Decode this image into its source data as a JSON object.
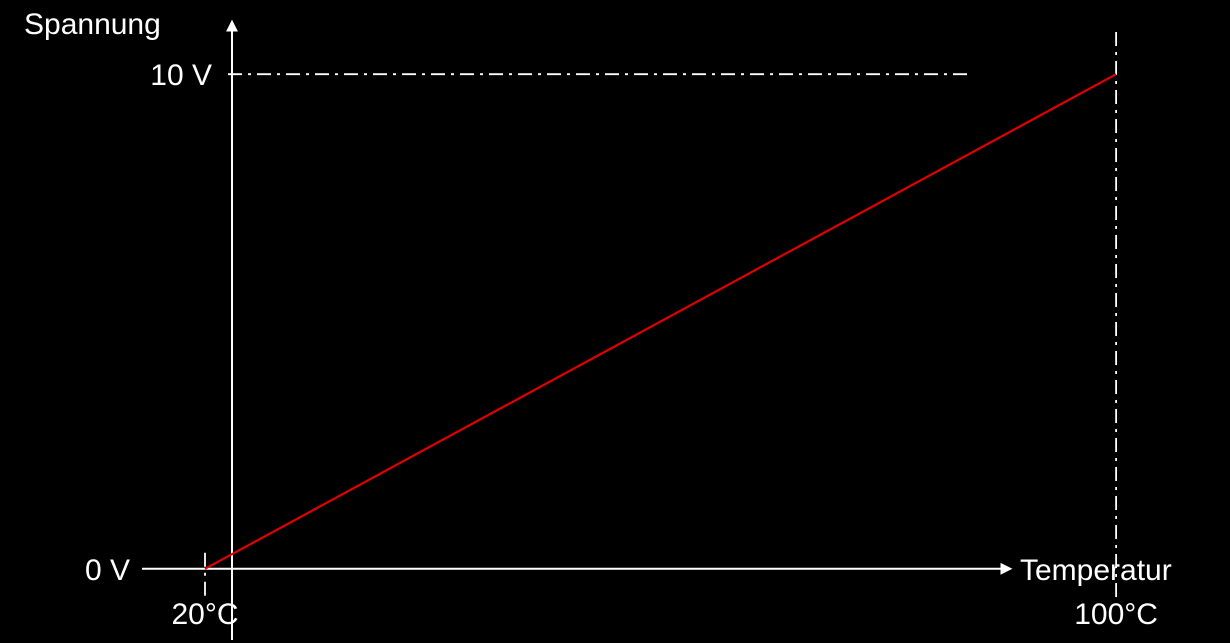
{
  "chart_data": {
    "type": "line",
    "title": "",
    "xlabel": "Temperatur",
    "ylabel": "Spannung",
    "x_unit": "°C",
    "y_unit": "V",
    "xlim": [
      2,
      110
    ],
    "ylim": [
      -1.5,
      11.5
    ],
    "x_ticks": [
      {
        "value": 20,
        "label": "20°C"
      },
      {
        "value": 100,
        "label": "100°C"
      }
    ],
    "y_ticks": [
      {
        "value": 0,
        "label": "0 V"
      },
      {
        "value": 10,
        "label": "10 V"
      }
    ],
    "series": [
      {
        "color": "#e00000",
        "points": [
          {
            "x": 20,
            "y": 0
          },
          {
            "x": 100,
            "y": 10
          }
        ]
      }
    ],
    "reference_lines": {
      "vertical_x": [
        20,
        100
      ],
      "horizontal_y": [
        10
      ],
      "style": "dash-dot"
    },
    "grid": false,
    "legend": "none",
    "colors": {
      "background": "#000000",
      "axes": "#ffffff",
      "text": "#ffffff",
      "line": "#e00000"
    }
  }
}
